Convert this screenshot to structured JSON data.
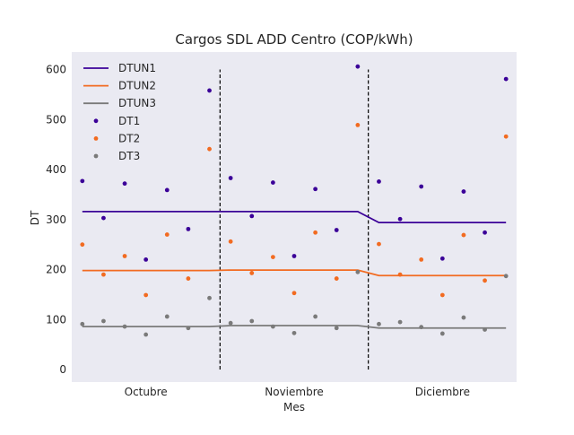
{
  "chart_data": {
    "type": "line",
    "title": "Cargos SDL ADD Centro (COP/kWh)",
    "xlabel": "Mes",
    "ylabel": "DT",
    "ylim": [
      -25,
      635
    ],
    "xlim": [
      -0.5,
      20.5
    ],
    "yticks": [
      0,
      100,
      200,
      300,
      400,
      500,
      600
    ],
    "xticks": [
      {
        "x": 3,
        "label": "Octubre"
      },
      {
        "x": 10,
        "label": "Noviembre"
      },
      {
        "x": 17,
        "label": "Diciembre"
      }
    ],
    "dividers_x": [
      6.5,
      13.5
    ],
    "divider_range": [
      0,
      600
    ],
    "grid": false,
    "legend_placement": "top-left",
    "background": "#eaeaf2",
    "series": [
      {
        "name": "DTUN1",
        "kind": "line",
        "color": "#3b0098",
        "x": [
          0,
          13,
          14,
          20
        ],
        "y": [
          316,
          316,
          294,
          294
        ]
      },
      {
        "name": "DTUN2",
        "kind": "line",
        "color": "#f26b21",
        "x": [
          0,
          6,
          7,
          13,
          14,
          20
        ],
        "y": [
          198,
          198,
          199,
          199,
          188,
          188
        ]
      },
      {
        "name": "DTUN3",
        "kind": "line",
        "color": "#7a7a7a",
        "x": [
          0,
          6,
          7,
          13,
          14,
          20
        ],
        "y": [
          86,
          86,
          88,
          88,
          83,
          83
        ]
      },
      {
        "name": "DT1",
        "kind": "scatter",
        "color": "#3b0098",
        "x": [
          0,
          1,
          2,
          3,
          4,
          5,
          6,
          7,
          8,
          9,
          10,
          11,
          12,
          13,
          14,
          15,
          16,
          17,
          18,
          19,
          20
        ],
        "y": [
          377,
          303,
          372,
          220,
          359,
          281,
          558,
          383,
          307,
          374,
          227,
          361,
          279,
          606,
          376,
          301,
          366,
          222,
          356,
          274,
          581
        ]
      },
      {
        "name": "DT2",
        "kind": "scatter",
        "color": "#f26b21",
        "x": [
          0,
          1,
          2,
          3,
          4,
          5,
          6,
          7,
          8,
          9,
          10,
          11,
          12,
          13,
          14,
          15,
          16,
          17,
          18,
          19,
          20
        ],
        "y": [
          250,
          190,
          227,
          149,
          270,
          182,
          441,
          256,
          193,
          225,
          153,
          274,
          182,
          489,
          251,
          190,
          220,
          149,
          269,
          178,
          466
        ]
      },
      {
        "name": "DT3",
        "kind": "scatter",
        "color": "#7a7a7a",
        "x": [
          0,
          1,
          2,
          3,
          4,
          5,
          6,
          7,
          8,
          9,
          10,
          11,
          12,
          13,
          14,
          15,
          16,
          17,
          18,
          19,
          20
        ],
        "y": [
          91,
          97,
          86,
          70,
          106,
          83,
          143,
          93,
          97,
          86,
          73,
          106,
          83,
          195,
          91,
          95,
          85,
          72,
          104,
          80,
          187
        ]
      }
    ]
  }
}
